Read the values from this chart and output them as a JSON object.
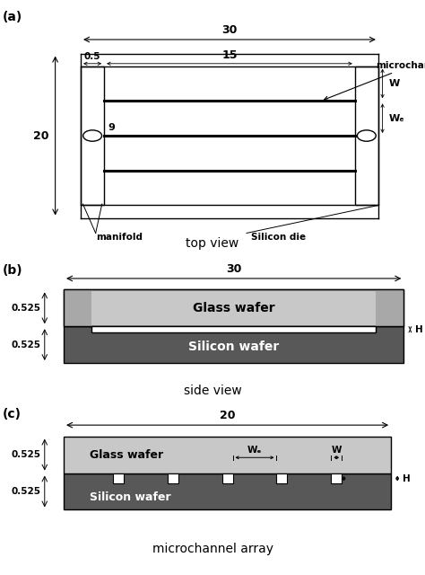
{
  "panel_a": {
    "label": "(a)",
    "title": "top view",
    "dim_30_label": "30",
    "dim_20_label": "20",
    "dim_15_label": "15",
    "dim_05_label": "0.5",
    "dim_9_label": "9",
    "dim_W_label": "W",
    "dim_We_label": "Wₑ",
    "microchannel_label": "microchannel",
    "manifold_label": "manifold",
    "silicon_die_label": "Silicon die"
  },
  "panel_b": {
    "label": "(b)",
    "title": "side view",
    "dim_30_label": "30",
    "dim_0525a_label": "0.525",
    "dim_0525b_label": "0.525",
    "dim_H_label": "H",
    "glass_label": "Glass wafer",
    "silicon_label": "Silicon wafer",
    "glass_color": "#c8c8c8",
    "glass_dark_color": "#a8a8a8",
    "silicon_color": "#585858",
    "white_color": "#ffffff"
  },
  "panel_c": {
    "label": "(c)",
    "title": "microchannel array",
    "dim_20_label": "20",
    "dim_0525a_label": "0.525",
    "dim_0525b_label": "0.525",
    "dim_H_label": "H",
    "dim_W_label": "W",
    "dim_We_label": "Wₑ",
    "glass_label": "Glass wafer",
    "silicon_label": "Silicon wafer",
    "glass_color": "#c8c8c8",
    "silicon_color": "#585858",
    "white_color": "#ffffff"
  },
  "bg_color": "#ffffff",
  "line_color": "#000000"
}
